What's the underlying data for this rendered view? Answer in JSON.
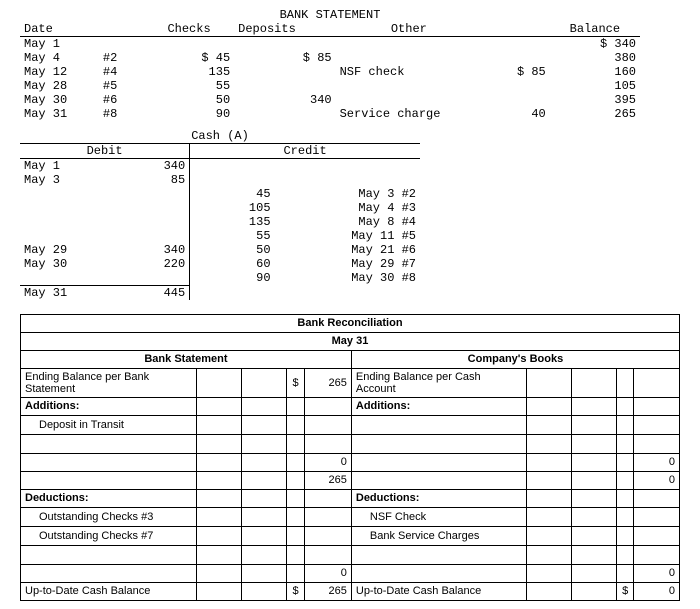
{
  "bank_statement": {
    "title": "BANK STATEMENT",
    "headers": {
      "date": "Date",
      "checks": "Checks",
      "deposits": "Deposits",
      "other": "Other",
      "balance": "Balance"
    },
    "rows": [
      {
        "date": "May 1",
        "check_no": "",
        "check_amt": "",
        "deposit": "",
        "other": "",
        "other_amt": "",
        "balance": "$ 340"
      },
      {
        "date": "May 4",
        "check_no": "#2",
        "check_amt": "$ 45",
        "deposit": "$ 85",
        "other": "",
        "other_amt": "",
        "balance": "380"
      },
      {
        "date": "May 12",
        "check_no": "#4",
        "check_amt": "135",
        "deposit": "",
        "other": "NSF check",
        "other_amt": "$ 85",
        "balance": "160"
      },
      {
        "date": "May 28",
        "check_no": "#5",
        "check_amt": "55",
        "deposit": "",
        "other": "",
        "other_amt": "",
        "balance": "105"
      },
      {
        "date": "May 30",
        "check_no": "#6",
        "check_amt": "50",
        "deposit": "340",
        "other": "",
        "other_amt": "",
        "balance": "395"
      },
      {
        "date": "May 31",
        "check_no": "#8",
        "check_amt": "90",
        "deposit": "",
        "other": "Service charge",
        "other_amt": "40",
        "balance": "265"
      }
    ]
  },
  "cash_ledger": {
    "title": "Cash (A)",
    "debit_label": "Debit",
    "credit_label": "Credit",
    "debit_rows": [
      {
        "date": "May 1",
        "amt": "340"
      },
      {
        "date": "May 3",
        "amt": "85"
      },
      {
        "date": "",
        "amt": ""
      },
      {
        "date": "",
        "amt": ""
      },
      {
        "date": "",
        "amt": ""
      },
      {
        "date": "",
        "amt": ""
      },
      {
        "date": "May 29",
        "amt": "340"
      },
      {
        "date": "May 30",
        "amt": "220"
      }
    ],
    "credit_rows": [
      {
        "amt": "",
        "ref": ""
      },
      {
        "amt": "",
        "ref": ""
      },
      {
        "amt": "45",
        "ref": "May 3 #2"
      },
      {
        "amt": "105",
        "ref": "May 4 #3"
      },
      {
        "amt": "135",
        "ref": "May 8 #4"
      },
      {
        "amt": "55",
        "ref": "May 11 #5"
      },
      {
        "amt": "50",
        "ref": "May 21 #6"
      },
      {
        "amt": "60",
        "ref": "May 29 #7"
      },
      {
        "amt": "90",
        "ref": "May 30 #8"
      }
    ],
    "total_row": {
      "date": "May 31",
      "amt": "445"
    }
  },
  "reconciliation": {
    "title": "Bank Reconciliation",
    "date": "May 31",
    "bank_side_header": "Bank Statement",
    "book_side_header": "Company's Books",
    "rows": {
      "ending_bank": "Ending Balance per Bank Statement",
      "ending_bank_val": "265",
      "ending_books": "Ending Balance per Cash Account",
      "additions": "Additions:",
      "deposit_in_transit": "Deposit in Transit",
      "zero": "0",
      "bank_subtotal": "265",
      "deductions": "Deductions:",
      "out_checks_3": "Outstanding Checks #3",
      "out_checks_7": "Outstanding Checks #7",
      "nsf_check": "NSF Check",
      "bank_service": "Bank Service Charges",
      "uptodate": "Up-to-Date Cash Balance",
      "uptodate_val": "265",
      "dollar": "$"
    }
  }
}
